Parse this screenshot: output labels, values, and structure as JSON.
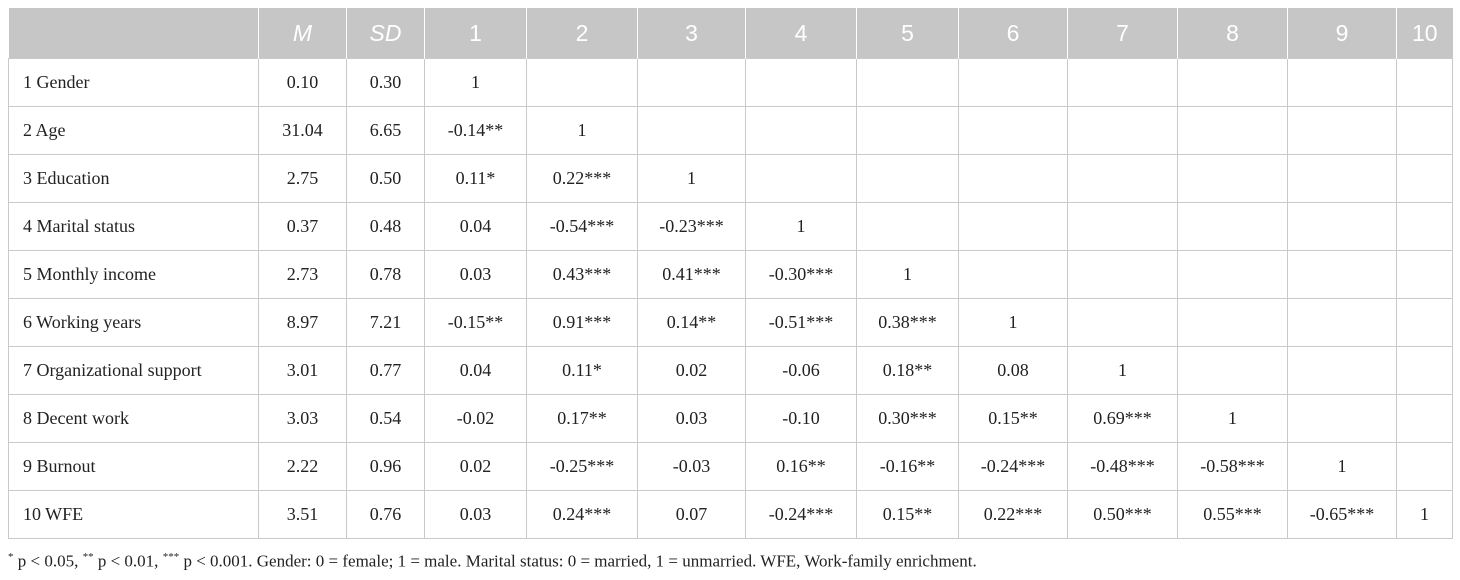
{
  "table": {
    "headers": [
      "",
      "M",
      "SD",
      "1",
      "2",
      "3",
      "4",
      "5",
      "6",
      "7",
      "8",
      "9",
      "10"
    ],
    "rows": [
      [
        "1 Gender",
        "0.10",
        "0.30",
        "1",
        "",
        "",
        "",
        "",
        "",
        "",
        "",
        "",
        ""
      ],
      [
        "2 Age",
        "31.04",
        "6.65",
        "-0.14**",
        "1",
        "",
        "",
        "",
        "",
        "",
        "",
        "",
        ""
      ],
      [
        "3 Education",
        "2.75",
        "0.50",
        "0.11*",
        "0.22***",
        "1",
        "",
        "",
        "",
        "",
        "",
        "",
        ""
      ],
      [
        "4 Marital status",
        "0.37",
        "0.48",
        "0.04",
        "-0.54***",
        "-0.23***",
        "1",
        "",
        "",
        "",
        "",
        "",
        ""
      ],
      [
        "5 Monthly income",
        "2.73",
        "0.78",
        "0.03",
        "0.43***",
        "0.41***",
        "-0.30***",
        "1",
        "",
        "",
        "",
        "",
        ""
      ],
      [
        "6 Working years",
        "8.97",
        "7.21",
        "-0.15**",
        "0.91***",
        "0.14**",
        "-0.51***",
        "0.38***",
        "1",
        "",
        "",
        "",
        ""
      ],
      [
        "7 Organizational support",
        "3.01",
        "0.77",
        "0.04",
        "0.11*",
        "0.02",
        "-0.06",
        "0.18**",
        "0.08",
        "1",
        "",
        "",
        ""
      ],
      [
        "8 Decent work",
        "3.03",
        "0.54",
        "-0.02",
        "0.17**",
        "0.03",
        "-0.10",
        "0.30***",
        "0.15**",
        "0.69***",
        "1",
        "",
        ""
      ],
      [
        "9 Burnout",
        "2.22",
        "0.96",
        "0.02",
        "-0.25***",
        "-0.03",
        "0.16**",
        "-0.16**",
        "-0.24***",
        "-0.48***",
        "-0.58***",
        "1",
        ""
      ],
      [
        "10 WFE",
        "3.51",
        "0.76",
        "0.03",
        "0.24***",
        "0.07",
        "-0.24***",
        "0.15**",
        "0.22***",
        "0.50***",
        "0.55***",
        "-0.65***",
        "1"
      ]
    ]
  },
  "footnote": {
    "parts": [
      {
        "sup": "*",
        "text": " p < 0.05, "
      },
      {
        "sup": "**",
        "text": " p < 0.01, "
      },
      {
        "sup": "***",
        "text": " p < 0.001. Gender: 0 = female; 1 = male. Marital status: 0 = married, 1 = unmarried. WFE, Work-family enrichment."
      }
    ]
  },
  "colors": {
    "header_bg": "#c6c6c6",
    "header_text": "#ffffff",
    "grid": "#c9c9c9",
    "text": "#222222"
  }
}
